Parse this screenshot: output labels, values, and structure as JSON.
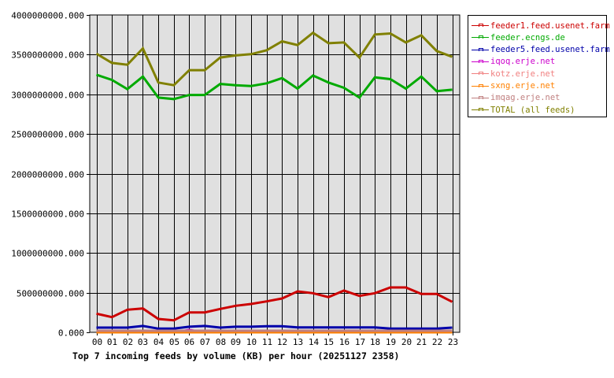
{
  "chart_data": {
    "type": "line",
    "title": "Top 7 incoming feeds by volume (KB) per hour (20251127 2358)",
    "xlabel": "",
    "ylabel": "",
    "ylim": [
      0,
      4000000000
    ],
    "grid": true,
    "legend_position": "right",
    "x": [
      "00",
      "01",
      "02",
      "03",
      "04",
      "05",
      "06",
      "07",
      "08",
      "09",
      "10",
      "11",
      "12",
      "13",
      "14",
      "15",
      "16",
      "17",
      "18",
      "19",
      "20",
      "21",
      "22",
      "23"
    ],
    "y_ticks": [
      "0.000",
      "500000000.000",
      "1000000000.000",
      "1500000000.000",
      "2000000000.000",
      "2500000000.000",
      "3000000000.000",
      "3500000000.000",
      "4000000000.000"
    ],
    "series": [
      {
        "name": "feeder1.feed.usenet.farm",
        "color": "#cc0000",
        "values": [
          235000000,
          192000000,
          285000000,
          301000000,
          169000000,
          152000000,
          251000000,
          251000000,
          295000000,
          334000000,
          357000000,
          390000000,
          427000000,
          516000000,
          493000000,
          444000000,
          526000000,
          460000000,
          493000000,
          566000000,
          566000000,
          483000000,
          483000000,
          384000000
        ]
      },
      {
        "name": "feeder.ecngs.de",
        "color": "#00aa00",
        "values": [
          3247000000,
          3181000000,
          3065000000,
          3224000000,
          2959000000,
          2940000000,
          2992000000,
          2992000000,
          3131000000,
          3115000000,
          3105000000,
          3138000000,
          3204000000,
          3072000000,
          3237000000,
          3148000000,
          3082000000,
          2959000000,
          3214000000,
          3191000000,
          3072000000,
          3224000000,
          3039000000,
          3058000000
        ]
      },
      {
        "name": "feeder5.feed.usenet.farm",
        "color": "#0000aa",
        "values": [
          60000000,
          60000000,
          60000000,
          80000000,
          47000000,
          47000000,
          70000000,
          80000000,
          60000000,
          70000000,
          70000000,
          76000000,
          76000000,
          63000000,
          63000000,
          63000000,
          63000000,
          63000000,
          63000000,
          47000000,
          47000000,
          47000000,
          47000000,
          60000000
        ]
      },
      {
        "name": "iqoq.erje.net",
        "color": "#cc00cc",
        "values": [
          0,
          0,
          0,
          0,
          0,
          0,
          30000000,
          0,
          0,
          0,
          0,
          0,
          0,
          0,
          0,
          0,
          0,
          0,
          0,
          0,
          0,
          0,
          0,
          0
        ]
      },
      {
        "name": "kotz.erje.net",
        "color": "#f08080",
        "values": [
          0,
          0,
          0,
          0,
          0,
          0,
          0,
          0,
          0,
          0,
          0,
          0,
          0,
          0,
          0,
          0,
          0,
          0,
          0,
          0,
          0,
          0,
          0,
          0
        ]
      },
      {
        "name": "sxng.erje.net",
        "color": "#ff8000",
        "values": [
          0,
          0,
          0,
          0,
          0,
          0,
          0,
          0,
          0,
          0,
          0,
          0,
          0,
          0,
          0,
          0,
          0,
          0,
          0,
          0,
          0,
          0,
          0,
          0
        ]
      },
      {
        "name": "imqag.erje.net",
        "color": "#c08080",
        "values": [
          20000000,
          20000000,
          20000000,
          20000000,
          20000000,
          20000000,
          20000000,
          20000000,
          20000000,
          20000000,
          20000000,
          20000000,
          20000000,
          20000000,
          20000000,
          20000000,
          20000000,
          20000000,
          20000000,
          20000000,
          20000000,
          20000000,
          20000000,
          20000000
        ]
      },
      {
        "name": "TOTAL (all feeds)",
        "color": "#808000",
        "values": [
          3512000000,
          3396000000,
          3373000000,
          3578000000,
          3148000000,
          3115000000,
          3304000000,
          3304000000,
          3463000000,
          3490000000,
          3506000000,
          3555000000,
          3667000000,
          3621000000,
          3776000000,
          3644000000,
          3654000000,
          3463000000,
          3754000000,
          3767000000,
          3654000000,
          3744000000,
          3545000000,
          3472000000
        ]
      }
    ]
  },
  "legend": {
    "items": [
      {
        "label": "feeder1.feed.usenet.farm",
        "color": "#cc0000"
      },
      {
        "label": "feeder.ecngs.de",
        "color": "#00aa00"
      },
      {
        "label": "feeder5.feed.usenet.farm",
        "color": "#0000aa"
      },
      {
        "label": "iqoq.erje.net",
        "color": "#cc00cc"
      },
      {
        "label": "kotz.erje.net",
        "color": "#f08080"
      },
      {
        "label": "sxng.erje.net",
        "color": "#ff8000"
      },
      {
        "label": "imqag.erje.net",
        "color": "#c08080"
      },
      {
        "label": "TOTAL (all feeds)",
        "color": "#808000"
      }
    ]
  },
  "colors": {
    "plot_background": "#e0e0e0",
    "grid": "#000000"
  }
}
